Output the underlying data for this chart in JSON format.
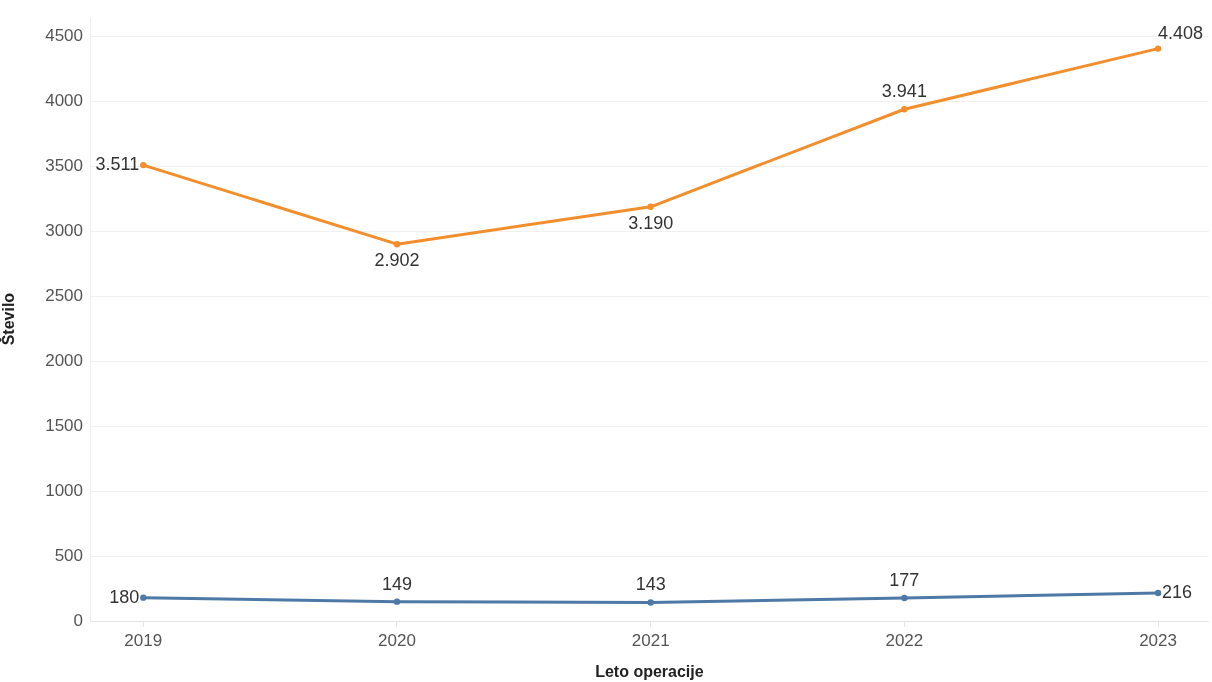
{
  "chart_data": {
    "type": "line",
    "xlabel": "Leto operacije",
    "ylabel": "Število",
    "x": [
      2019,
      2020,
      2021,
      2022,
      2023
    ],
    "xlim": [
      2018.79,
      2023.2
    ],
    "xticks": [
      2019,
      2020,
      2021,
      2022,
      2023
    ],
    "ylim": [
      0,
      4650
    ],
    "yticks": [
      0,
      500,
      1000,
      1500,
      2000,
      2500,
      3000,
      3500,
      4000,
      4500
    ],
    "grid": "y",
    "legend": false,
    "marker": "circle",
    "line_style": "solid",
    "series": [
      {
        "color": "#f28e2b",
        "values": [
          3511,
          2902,
          3190,
          3941,
          4408
        ],
        "value_labels": [
          "3.511",
          "2.902",
          "3.190",
          "3.941",
          "4.408"
        ]
      },
      {
        "color": "#4e79a7",
        "values": [
          180,
          149,
          143,
          177,
          216
        ],
        "value_labels": [
          "180",
          "149",
          "143",
          "177",
          "216"
        ]
      }
    ]
  }
}
